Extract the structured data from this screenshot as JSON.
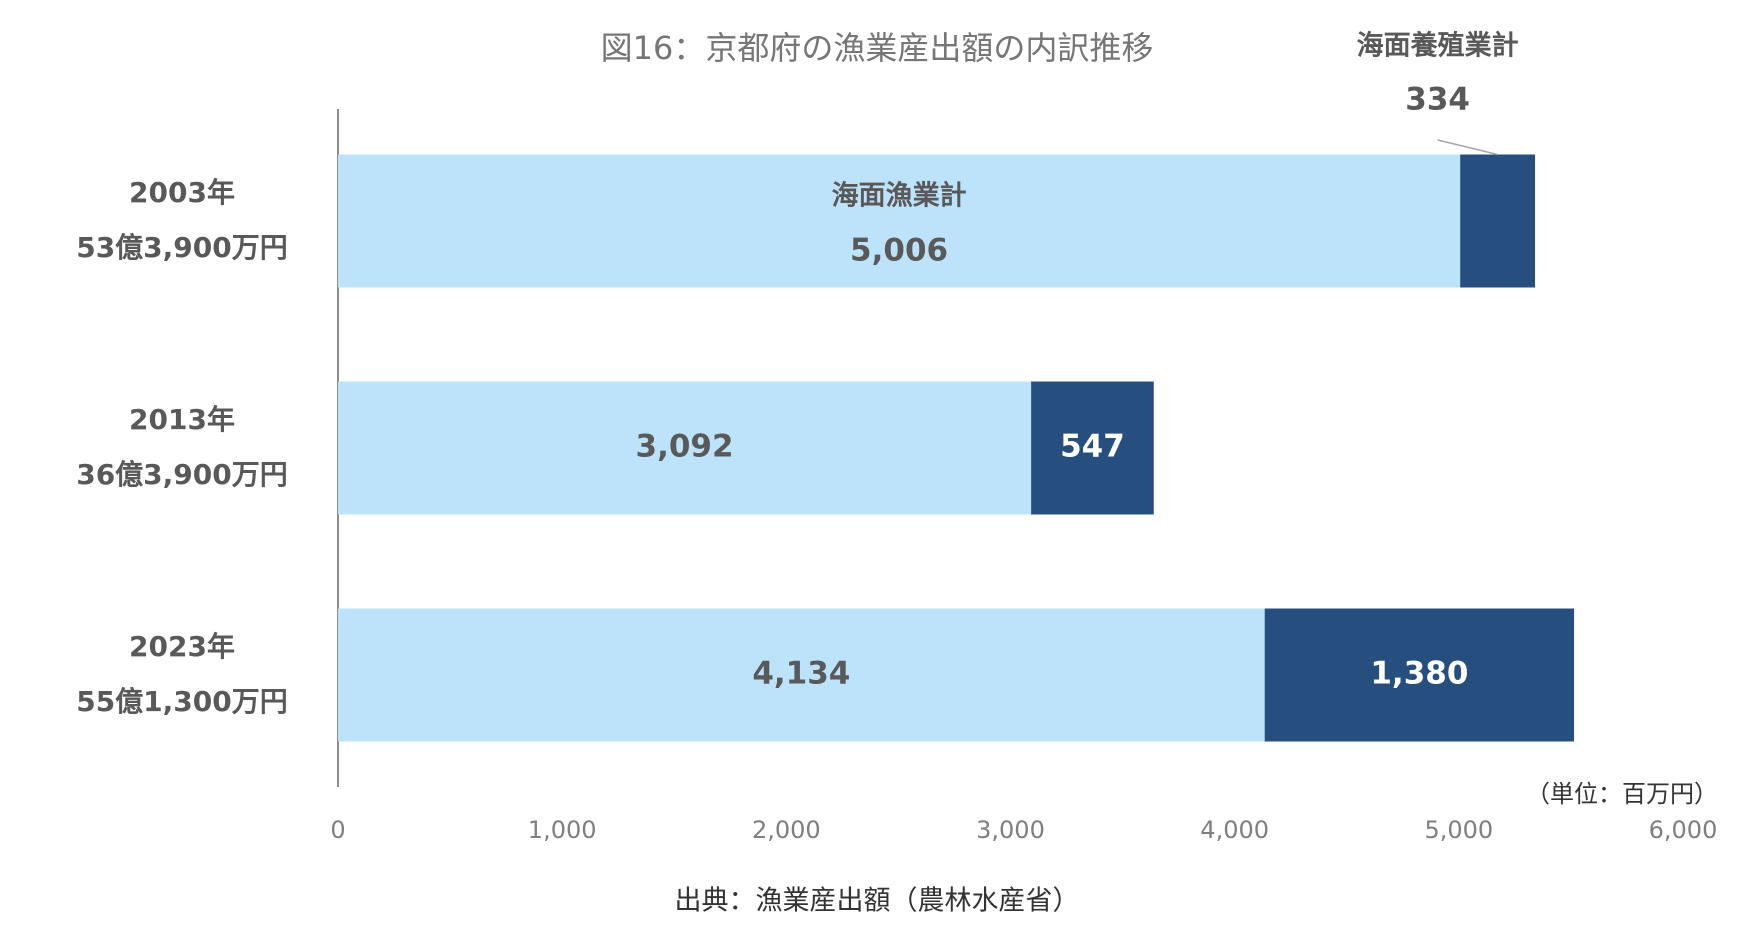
{
  "chart_data": {
    "type": "stacked-bar-horizontal",
    "title": "図16：京都府の漁業産出額の内訳推移",
    "categories": [
      "2003年",
      "2013年",
      "2023年"
    ],
    "category_sublabels": [
      "53億3,900万円",
      "36億3,900万円",
      "55億1,300万円"
    ],
    "series": [
      {
        "name": "海面漁業計",
        "color": "#bde3fb",
        "values": [
          5006,
          3092,
          4134
        ],
        "value_labels": [
          "5,006",
          "3,092",
          "4,134"
        ]
      },
      {
        "name": "海面養殖業計",
        "color": "#264f80",
        "values": [
          334,
          547,
          1380
        ],
        "value_labels": [
          "334",
          "547",
          "1,380"
        ]
      }
    ],
    "xlim": [
      0,
      6000
    ],
    "xticks": [
      0,
      {
        "value": 1000,
        "label": "1,000"
      },
      {
        "value": 2000,
        "label": "2,000"
      },
      {
        "value": 3000,
        "label": "3,000"
      },
      {
        "value": 4000,
        "label": "4,000"
      },
      {
        "value": 5000,
        "label": "5,000"
      },
      {
        "value": 6000,
        "label": "6,000"
      }
    ],
    "unit_note": "（単位：百万円）",
    "source": "出典：漁業産出額（農林水産省）"
  }
}
